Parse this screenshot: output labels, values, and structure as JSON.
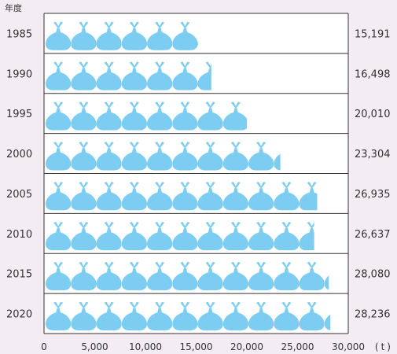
{
  "chart_data": {
    "type": "bar",
    "title": "",
    "ylabel": "年度",
    "xunit": "(t)",
    "categories": [
      "1985",
      "1990",
      "1995",
      "2000",
      "2005",
      "2010",
      "2015",
      "2020"
    ],
    "values": [
      15191,
      16498,
      20010,
      23304,
      26935,
      26637,
      28080,
      28236
    ],
    "value_labels": [
      "15,191",
      "16,498",
      "20,010",
      "23,304",
      "26,935",
      "26,637",
      "28,080",
      "28,236"
    ],
    "xlim": [
      0,
      30000
    ],
    "x_ticks": [
      0,
      5000,
      10000,
      15000,
      20000,
      25000,
      30000
    ],
    "x_tick_labels": [
      "0",
      "5,000",
      "10,000",
      "15,000",
      "20,000",
      "25,000",
      "30,000"
    ],
    "grid": false,
    "legend": "none",
    "mark": "garbage-bag-icon",
    "bag_unit": 2500,
    "colors": {
      "bag": "#7ccdf1",
      "background": "#f3ecf3",
      "panel": "#ffffff",
      "frame": "#333333"
    }
  }
}
